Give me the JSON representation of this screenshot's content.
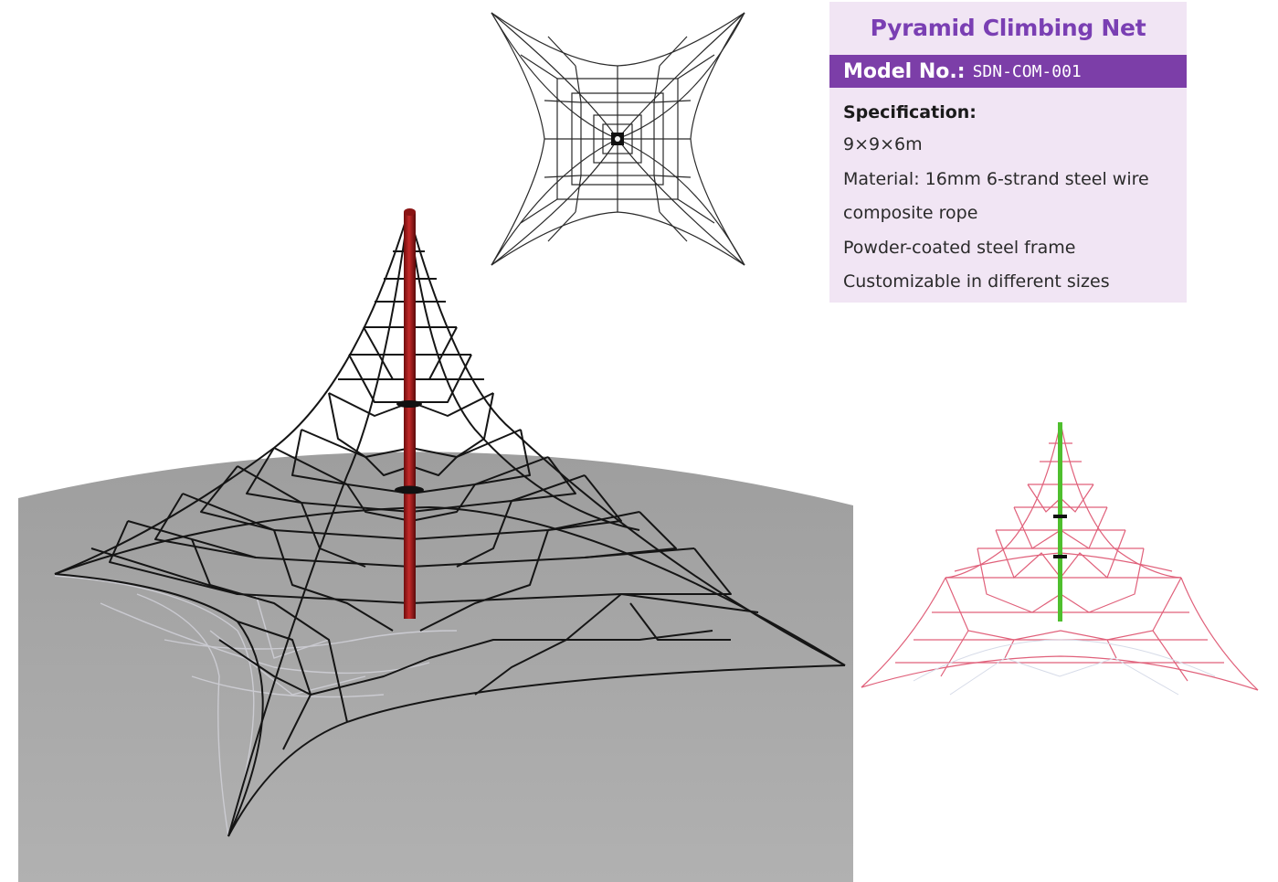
{
  "product": {
    "title": "Pyramid Climbing Net",
    "model_label": "Model No.:",
    "model_number": "SDN-COM-001",
    "spec_heading": "Specification:",
    "spec_lines": [
      "9×9×6m",
      "Material: 16mm 6-strand steel wire",
      "composite rope",
      "Powder-coated steel frame",
      "Customizable in different sizes"
    ]
  },
  "colors": {
    "title": "#7a3fb3",
    "model_bar": "#7c3ea8",
    "card_background": "#f1e5f4",
    "ground": "#a8a8a8",
    "rope_main": "#151515",
    "pole_main": "#b01e1e",
    "rope_side": "#e0607a",
    "pole_side": "#4fbf2e"
  },
  "images": {
    "main_view": "3d-render-red-pole",
    "top_view": "top-plan-drawing",
    "side_view": "pink-side-render-green-pole"
  }
}
